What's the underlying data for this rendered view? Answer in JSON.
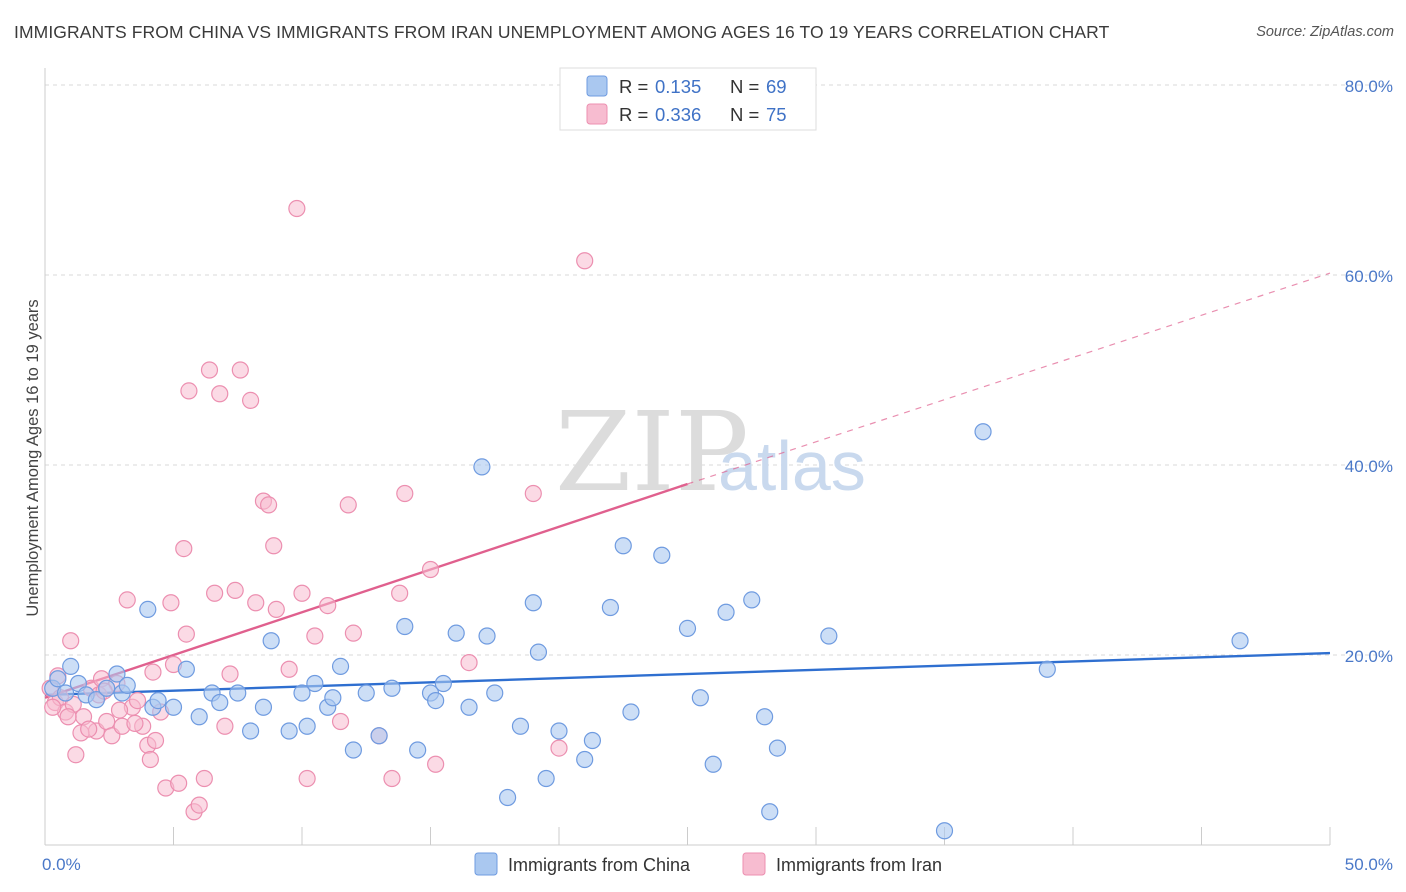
{
  "title": "IMMIGRANTS FROM CHINA VS IMMIGRANTS FROM IRAN UNEMPLOYMENT AMONG AGES 16 TO 19 YEARS CORRELATION CHART",
  "source": "Source: ZipAtlas.com",
  "watermark": {
    "zip": "ZIP",
    "atlas": "atlas"
  },
  "legend": {
    "china": {
      "r_label": "R =",
      "r_value": "0.135",
      "n_label": "N =",
      "n_value": "69"
    },
    "iran": {
      "r_label": "R =",
      "r_value": "0.336",
      "n_label": "N =",
      "n_value": "75"
    }
  },
  "bottom_legend": {
    "china": "Immigrants from China",
    "iran": "Immigrants from Iran"
  },
  "colors": {
    "china_fill": "#aac8f0",
    "china_stroke": "#6f9be0",
    "china_line": "#2f6fd0",
    "iran_fill": "#f7bcd0",
    "iran_stroke": "#ec8fb0",
    "iran_line": "#e0608e",
    "tick": "#4a78c8",
    "grid": "#d8d8d8"
  },
  "chart_data": {
    "type": "scatter",
    "xlabel": "",
    "ylabel": "Unemployment Among Ages 16 to 19 years",
    "xlim": [
      0,
      50
    ],
    "ylim": [
      0,
      80
    ],
    "x_tick_labels": [
      "0.0%",
      "50.0%"
    ],
    "y_tick_labels": [
      "20.0%",
      "40.0%",
      "60.0%",
      "80.0%"
    ],
    "y_ticks": [
      20,
      40,
      60,
      80
    ],
    "grid": true,
    "legend_placement": "top-center",
    "series": [
      {
        "name": "Immigrants from China",
        "trend": {
          "x0": 0,
          "y0": 15.8,
          "x1": 50,
          "y1": 20.2
        },
        "points": [
          [
            0.3,
            16.5
          ],
          [
            0.5,
            17.5
          ],
          [
            0.8,
            16
          ],
          [
            1,
            18.8
          ],
          [
            1.3,
            17
          ],
          [
            1.6,
            15.8
          ],
          [
            2,
            15.3
          ],
          [
            2.4,
            16.5
          ],
          [
            2.8,
            18
          ],
          [
            3,
            16
          ],
          [
            3.2,
            16.8
          ],
          [
            4,
            24.8
          ],
          [
            4.2,
            14.5
          ],
          [
            4.4,
            15.2
          ],
          [
            5,
            14.5
          ],
          [
            5.5,
            18.5
          ],
          [
            6,
            13.5
          ],
          [
            6.5,
            16
          ],
          [
            6.8,
            15
          ],
          [
            7.5,
            16
          ],
          [
            8,
            12
          ],
          [
            8.5,
            14.5
          ],
          [
            8.8,
            21.5
          ],
          [
            9.5,
            12
          ],
          [
            10,
            16
          ],
          [
            10.2,
            12.5
          ],
          [
            10.5,
            17
          ],
          [
            11,
            14.5
          ],
          [
            11.2,
            15.5
          ],
          [
            11.5,
            18.8
          ],
          [
            12,
            10
          ],
          [
            12.5,
            16
          ],
          [
            13,
            11.5
          ],
          [
            13.5,
            16.5
          ],
          [
            14,
            23
          ],
          [
            14.5,
            10
          ],
          [
            15,
            16
          ],
          [
            15.2,
            15.2
          ],
          [
            15.5,
            17
          ],
          [
            16,
            22.3
          ],
          [
            16.5,
            14.5
          ],
          [
            17,
            39.8
          ],
          [
            17.2,
            22
          ],
          [
            17.5,
            16
          ],
          [
            18,
            5
          ],
          [
            18.5,
            12.5
          ],
          [
            19,
            25.5
          ],
          [
            19.2,
            20.3
          ],
          [
            19.5,
            7
          ],
          [
            20,
            12
          ],
          [
            21,
            9
          ],
          [
            21.3,
            11
          ],
          [
            22,
            25
          ],
          [
            22.5,
            31.5
          ],
          [
            22.8,
            14
          ],
          [
            24,
            30.5
          ],
          [
            25,
            22.8
          ],
          [
            25.5,
            15.5
          ],
          [
            26,
            8.5
          ],
          [
            26.5,
            24.5
          ],
          [
            27.5,
            25.8
          ],
          [
            28,
            13.5
          ],
          [
            28.2,
            3.5
          ],
          [
            28.5,
            10.2
          ],
          [
            30.5,
            22
          ],
          [
            35,
            1.5
          ],
          [
            36.5,
            43.5
          ],
          [
            39,
            18.5
          ],
          [
            46.5,
            21.5
          ]
        ]
      },
      {
        "name": "Immigrants from Iran",
        "trend": {
          "x0": 0,
          "y0": 15.5,
          "x1": 25,
          "y1": 38,
          "dash_x1": 50,
          "dash_y1": 60.2
        },
        "points": [
          [
            0.2,
            16.5
          ],
          [
            0.4,
            15
          ],
          [
            0.6,
            15.5
          ],
          [
            0.8,
            14
          ],
          [
            1,
            21.5
          ],
          [
            1.2,
            9.5
          ],
          [
            1.5,
            13.5
          ],
          [
            1.8,
            16.5
          ],
          [
            2,
            12
          ],
          [
            2.2,
            17.5
          ],
          [
            2.4,
            13
          ],
          [
            2.6,
            11.5
          ],
          [
            2.8,
            17
          ],
          [
            3,
            12.5
          ],
          [
            3.2,
            25.8
          ],
          [
            3.4,
            14.5
          ],
          [
            3.6,
            15.2
          ],
          [
            3.8,
            12.5
          ],
          [
            4,
            10.5
          ],
          [
            4.1,
            9
          ],
          [
            4.3,
            11
          ],
          [
            4.5,
            14
          ],
          [
            4.7,
            6
          ],
          [
            4.9,
            25.5
          ],
          [
            5,
            19
          ],
          [
            5.2,
            6.5
          ],
          [
            5.4,
            31.2
          ],
          [
            5.5,
            22.2
          ],
          [
            5.6,
            47.8
          ],
          [
            5.8,
            3.5
          ],
          [
            6,
            4.2
          ],
          [
            6.2,
            7
          ],
          [
            6.4,
            50
          ],
          [
            6.6,
            26.5
          ],
          [
            6.8,
            47.5
          ],
          [
            7,
            12.5
          ],
          [
            7.2,
            18
          ],
          [
            7.4,
            26.8
          ],
          [
            7.6,
            50
          ],
          [
            8,
            46.8
          ],
          [
            8.2,
            25.5
          ],
          [
            8.5,
            36.2
          ],
          [
            8.7,
            35.8
          ],
          [
            8.9,
            31.5
          ],
          [
            9,
            24.8
          ],
          [
            9.5,
            18.5
          ],
          [
            9.8,
            67
          ],
          [
            10,
            26.5
          ],
          [
            10.2,
            7
          ],
          [
            10.5,
            22
          ],
          [
            11,
            25.2
          ],
          [
            11.5,
            13
          ],
          [
            11.8,
            35.8
          ],
          [
            12,
            22.3
          ],
          [
            13,
            11.5
          ],
          [
            13.5,
            7
          ],
          [
            13.8,
            26.5
          ],
          [
            14,
            37
          ],
          [
            15,
            29
          ],
          [
            15.2,
            8.5
          ],
          [
            16.5,
            19.2
          ],
          [
            19,
            37
          ],
          [
            20,
            10.2
          ],
          [
            21,
            61.5
          ],
          [
            0.5,
            17.8
          ],
          [
            1.1,
            14.8
          ],
          [
            1.4,
            11.8
          ],
          [
            2.1,
            15.8
          ],
          [
            2.9,
            14.2
          ],
          [
            3.5,
            12.8
          ],
          [
            4.2,
            18.2
          ],
          [
            0.3,
            14.5
          ],
          [
            1.7,
            12.2
          ],
          [
            2.3,
            16.2
          ],
          [
            0.9,
            13.5
          ]
        ]
      }
    ]
  }
}
